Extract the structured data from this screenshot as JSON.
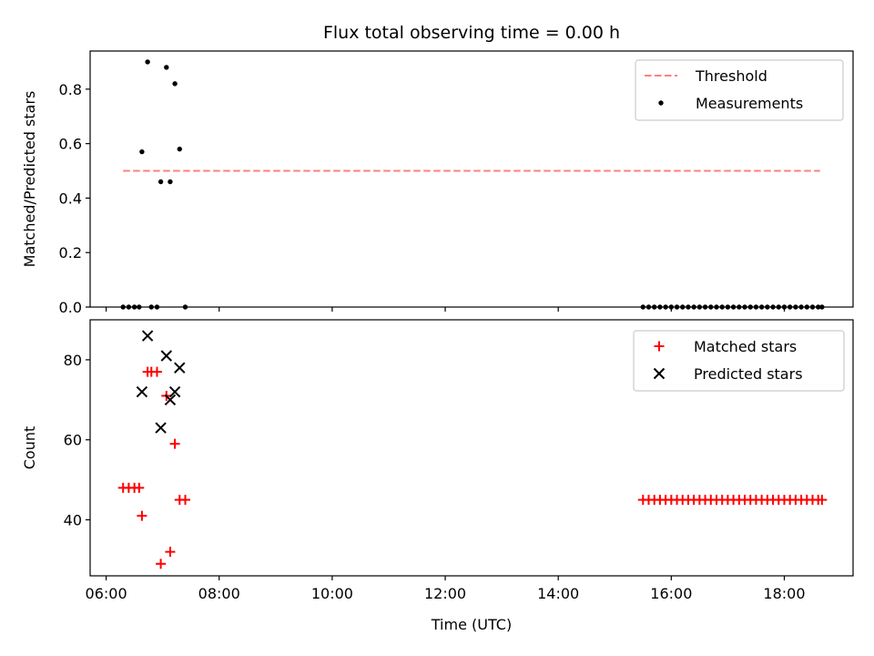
{
  "chart_data": [
    {
      "type": "scatter",
      "title": "Flux total observing time = 0.00 h",
      "xlabel": "",
      "ylabel": "Matched/Predicted stars",
      "xlim": [
        "05:43",
        "19:13"
      ],
      "ylim": [
        0,
        0.94
      ],
      "yticks": [
        0.0,
        0.2,
        0.4,
        0.6,
        0.8
      ],
      "ytick_labels": [
        "0.0",
        "0.2",
        "0.4",
        "0.6",
        "0.8"
      ],
      "xticks": [
        "06:00",
        "08:00",
        "10:00",
        "12:00",
        "14:00",
        "16:00",
        "18:00"
      ],
      "grid": false,
      "legend_position": "top-right",
      "series": [
        {
          "name": "Threshold",
          "kind": "line",
          "style": "dashed",
          "color": "#ff7f7f",
          "points": [
            [
              "06:18",
              0.5
            ],
            [
              "18:38",
              0.5
            ]
          ]
        },
        {
          "name": "Measurements",
          "kind": "scatter",
          "marker": "dot",
          "color": "#000000",
          "points": [
            [
              "06:18",
              0.0
            ],
            [
              "06:24",
              0.0
            ],
            [
              "06:30",
              0.0
            ],
            [
              "06:35",
              0.0
            ],
            [
              "06:38",
              0.57
            ],
            [
              "06:44",
              0.9
            ],
            [
              "06:48",
              0.0
            ],
            [
              "06:54",
              0.0
            ],
            [
              "06:58",
              0.46
            ],
            [
              "07:04",
              0.88
            ],
            [
              "07:08",
              0.46
            ],
            [
              "07:13",
              0.82
            ],
            [
              "07:18",
              0.58
            ],
            [
              "07:24",
              0.0
            ],
            [
              "15:30",
              0.0
            ],
            [
              "15:36",
              0.0
            ],
            [
              "15:42",
              0.0
            ],
            [
              "15:48",
              0.0
            ],
            [
              "15:54",
              0.0
            ],
            [
              "16:00",
              0.0
            ],
            [
              "16:06",
              0.0
            ],
            [
              "16:12",
              0.0
            ],
            [
              "16:18",
              0.0
            ],
            [
              "16:24",
              0.0
            ],
            [
              "16:30",
              0.0
            ],
            [
              "16:36",
              0.0
            ],
            [
              "16:42",
              0.0
            ],
            [
              "16:48",
              0.0
            ],
            [
              "16:54",
              0.0
            ],
            [
              "17:00",
              0.0
            ],
            [
              "17:06",
              0.0
            ],
            [
              "17:12",
              0.0
            ],
            [
              "17:18",
              0.0
            ],
            [
              "17:24",
              0.0
            ],
            [
              "17:30",
              0.0
            ],
            [
              "17:36",
              0.0
            ],
            [
              "17:42",
              0.0
            ],
            [
              "17:48",
              0.0
            ],
            [
              "17:54",
              0.0
            ],
            [
              "18:00",
              0.0
            ],
            [
              "18:06",
              0.0
            ],
            [
              "18:12",
              0.0
            ],
            [
              "18:18",
              0.0
            ],
            [
              "18:24",
              0.0
            ],
            [
              "18:30",
              0.0
            ],
            [
              "18:36",
              0.0
            ],
            [
              "18:40",
              0.0
            ]
          ]
        }
      ]
    },
    {
      "type": "scatter",
      "title": "",
      "xlabel": "Time (UTC)",
      "ylabel": "Count",
      "xlim": [
        "05:43",
        "19:13"
      ],
      "ylim": [
        26,
        90
      ],
      "yticks": [
        40,
        60,
        80
      ],
      "ytick_labels": [
        "40",
        "60",
        "80"
      ],
      "xticks": [
        "06:00",
        "08:00",
        "10:00",
        "12:00",
        "14:00",
        "16:00",
        "18:00"
      ],
      "grid": false,
      "legend_position": "top-right",
      "series": [
        {
          "name": "Matched stars",
          "kind": "scatter",
          "marker": "plus",
          "color": "#ff0000",
          "points": [
            [
              "06:18",
              48
            ],
            [
              "06:24",
              48
            ],
            [
              "06:30",
              48
            ],
            [
              "06:35",
              48
            ],
            [
              "06:38",
              41
            ],
            [
              "06:44",
              77
            ],
            [
              "06:48",
              77
            ],
            [
              "06:54",
              77
            ],
            [
              "06:58",
              29
            ],
            [
              "07:04",
              71
            ],
            [
              "07:08",
              32
            ],
            [
              "07:13",
              59
            ],
            [
              "07:18",
              45
            ],
            [
              "07:24",
              45
            ],
            [
              "15:30",
              45
            ],
            [
              "15:36",
              45
            ],
            [
              "15:42",
              45
            ],
            [
              "15:48",
              45
            ],
            [
              "15:54",
              45
            ],
            [
              "16:00",
              45
            ],
            [
              "16:06",
              45
            ],
            [
              "16:12",
              45
            ],
            [
              "16:18",
              45
            ],
            [
              "16:24",
              45
            ],
            [
              "16:30",
              45
            ],
            [
              "16:36",
              45
            ],
            [
              "16:42",
              45
            ],
            [
              "16:48",
              45
            ],
            [
              "16:54",
              45
            ],
            [
              "17:00",
              45
            ],
            [
              "17:06",
              45
            ],
            [
              "17:12",
              45
            ],
            [
              "17:18",
              45
            ],
            [
              "17:24",
              45
            ],
            [
              "17:30",
              45
            ],
            [
              "17:36",
              45
            ],
            [
              "17:42",
              45
            ],
            [
              "17:48",
              45
            ],
            [
              "17:54",
              45
            ],
            [
              "18:00",
              45
            ],
            [
              "18:06",
              45
            ],
            [
              "18:12",
              45
            ],
            [
              "18:18",
              45
            ],
            [
              "18:24",
              45
            ],
            [
              "18:30",
              45
            ],
            [
              "18:36",
              45
            ],
            [
              "18:40",
              45
            ]
          ]
        },
        {
          "name": "Predicted stars",
          "kind": "scatter",
          "marker": "x",
          "color": "#000000",
          "points": [
            [
              "06:38",
              72
            ],
            [
              "06:44",
              86
            ],
            [
              "06:58",
              63
            ],
            [
              "07:04",
              81
            ],
            [
              "07:08",
              70
            ],
            [
              "07:13",
              72
            ],
            [
              "07:18",
              78
            ]
          ]
        }
      ]
    }
  ]
}
